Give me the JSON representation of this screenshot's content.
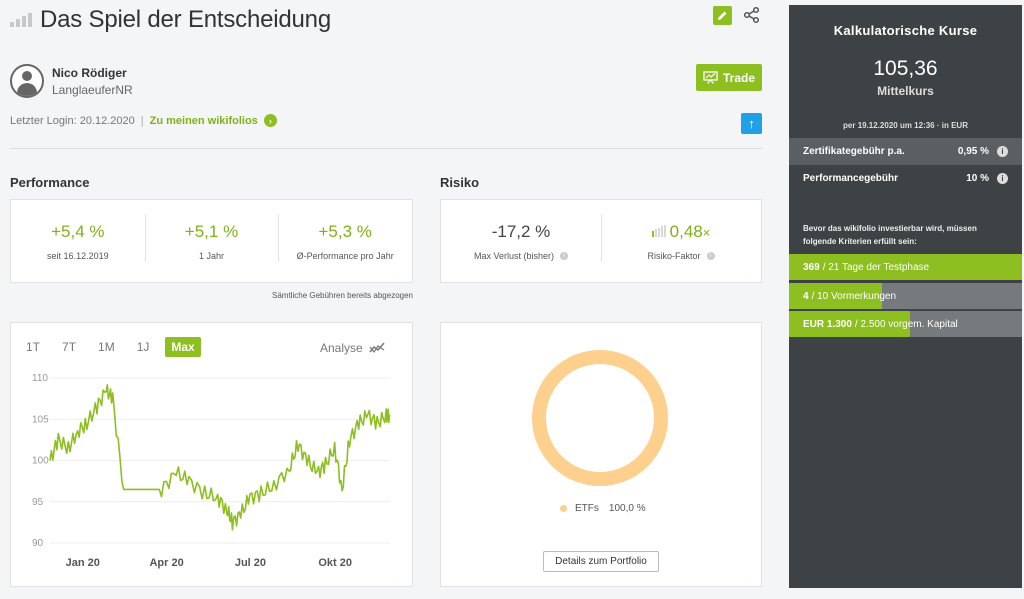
{
  "header": {
    "title": "Das Spiel der Entscheidung",
    "icons": {
      "edit": "pencil-icon",
      "share": "share-icon",
      "rank": "rank-bars-icon"
    }
  },
  "trader": {
    "name": "Nico Rödiger",
    "nickname": "LanglaeuferNR",
    "last_login": "Letzter Login: 20.12.2020",
    "link": "Zu meinen wikifolios",
    "trade_label": "Trade"
  },
  "performance": {
    "section_title": "Performance",
    "items": [
      {
        "value": "+5,4 %",
        "label": "seit 16.12.2019"
      },
      {
        "value": "+5,1 %",
        "label": "1 Jahr"
      },
      {
        "value": "+5,3 %",
        "label": "Ø-Performance pro Jahr"
      }
    ],
    "fees_note": "Sämtliche Gebühren bereits abgezogen"
  },
  "risk": {
    "section_title": "Risiko",
    "max_loss": {
      "value": "-17,2 %",
      "label": "Max Verlust (bisher)"
    },
    "risk_factor": {
      "value": "0,48",
      "suffix": "×",
      "label": "Risiko-Faktor",
      "bars_active": 1,
      "bars_total": 5
    }
  },
  "chart_controls": {
    "ranges": [
      "1T",
      "7T",
      "1M",
      "1J",
      "Max"
    ],
    "active_range": "Max",
    "analyse_label": "Analyse"
  },
  "chart_data": [
    {
      "type": "line",
      "title": "",
      "xlabel": "",
      "ylabel": "",
      "ylim": [
        90,
        110
      ],
      "yticks": [
        90,
        95,
        100,
        105,
        110
      ],
      "xtick_labels": [
        "Jan 20",
        "Apr 20",
        "Jul 20",
        "Okt 20"
      ],
      "x": [
        "2019-12-16",
        "2019-12-25",
        "2020-01-05",
        "2020-01-15",
        "2020-01-25",
        "2020-02-05",
        "2020-02-15",
        "2020-02-22",
        "2020-03-05",
        "2020-03-15",
        "2020-04-01",
        "2020-04-15",
        "2020-05-01",
        "2020-05-15",
        "2020-06-01",
        "2020-06-15",
        "2020-06-25",
        "2020-07-01",
        "2020-07-10",
        "2020-07-20",
        "2020-08-01",
        "2020-08-15",
        "2020-09-01",
        "2020-09-10",
        "2020-09-20",
        "2020-10-01",
        "2020-10-10",
        "2020-10-20",
        "2020-10-28",
        "2020-11-05",
        "2020-11-15",
        "2020-11-25",
        "2020-12-05",
        "2020-12-15",
        "2020-12-19"
      ],
      "series": [
        {
          "values": [
            100.0,
            102.5,
            101.5,
            103.5,
            104.5,
            106.5,
            108.5,
            107.5,
            96.5,
            96.5,
            96.5,
            96.5,
            98.5,
            97.5,
            96.0,
            95.5,
            94.0,
            92.5,
            93.5,
            95.5,
            96.0,
            97.0,
            99.0,
            102.0,
            100.0,
            98.5,
            99.5,
            101.5,
            96.5,
            102.5,
            104.5,
            105.5,
            104.5,
            105.5,
            105.4
          ]
        }
      ],
      "color": "#8cbf1f"
    },
    {
      "type": "pie",
      "title": "",
      "categories": [
        "ETFs"
      ],
      "values": [
        100.0
      ],
      "value_labels": [
        "100,0 %"
      ],
      "colors": [
        "#fdd08d"
      ]
    }
  ],
  "portfolio": {
    "legend_label": "ETFs",
    "legend_value": "100,0 %",
    "details_label": "Details zum Portfolio"
  },
  "side": {
    "title": "Kalkulatorische Kurse",
    "price": "105,36",
    "price_label": "Mittelkurs",
    "as_of": "per 19.12.2020 um 12:36 · in EUR",
    "fees": [
      {
        "label": "Zertifikategebühr p.a.",
        "value": "0,95 %"
      },
      {
        "label": "Performancegebühr",
        "value": "10 %"
      }
    ],
    "note": "Bevor das wikifolio investierbar wird, müssen folgende Kriterien erfüllt sein:",
    "criteria": [
      {
        "current": "369",
        "rest": "/ 21 Tage der Testphase",
        "progress": 1.0
      },
      {
        "current": "4",
        "rest": "/ 10 Vormerkungen",
        "progress": 0.4
      },
      {
        "current": "EUR 1.300",
        "rest": "/ 2.500 vorgem. Kapital",
        "progress": 0.52
      }
    ],
    "accent": "#8cbf1f",
    "background": "#3f4244"
  }
}
